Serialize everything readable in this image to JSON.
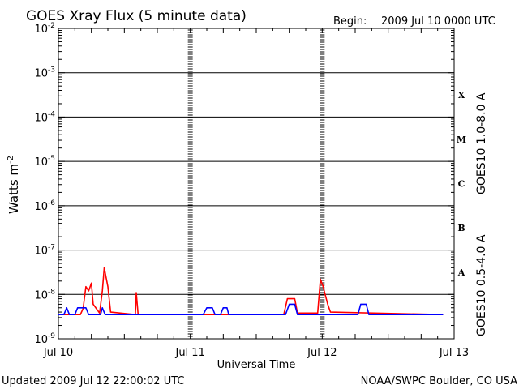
{
  "chart_data": {
    "type": "line",
    "title": "GOES Xray Flux (5 minute data)",
    "begin_label": "Begin:",
    "begin_value": "2009 Jul 10 0000 UTC",
    "xlabel": "Universal Time",
    "ylabel_base": "Watts m",
    "ylabel_exp": "-2",
    "yscale": "log",
    "ylim": [
      1e-09,
      0.01
    ],
    "xlim": [
      "2009-07-10 00:00",
      "2009-07-13 00:00"
    ],
    "grid": true,
    "x_ticks": [
      {
        "x": "2009-07-10 00:00",
        "label": "Jul 10"
      },
      {
        "x": "2009-07-11 00:00",
        "label": "Jul 11"
      },
      {
        "x": "2009-07-12 00:00",
        "label": "Jul 12"
      },
      {
        "x": "2009-07-13 00:00",
        "label": "Jul 13"
      }
    ],
    "y_ticks": [
      {
        "value": 0.01,
        "base": "10",
        "exp": "-2"
      },
      {
        "value": 0.001,
        "base": "10",
        "exp": "-3"
      },
      {
        "value": 0.0001,
        "base": "10",
        "exp": "-4"
      },
      {
        "value": 1e-05,
        "base": "10",
        "exp": "-5"
      },
      {
        "value": 1e-06,
        "base": "10",
        "exp": "-6"
      },
      {
        "value": 1e-07,
        "base": "10",
        "exp": "-7"
      },
      {
        "value": 1e-08,
        "base": "10",
        "exp": "-8"
      },
      {
        "value": 1e-09,
        "base": "10",
        "exp": "-9"
      }
    ],
    "flare_classes": [
      {
        "label": "X",
        "center": 0.000316
      },
      {
        "label": "M",
        "center": 3.16e-05
      },
      {
        "label": "C",
        "center": 3.16e-06
      },
      {
        "label": "B",
        "center": 3.16e-07
      },
      {
        "label": "A",
        "center": 3.16e-08
      }
    ],
    "series": [
      {
        "name": "GOES10 1.0-8.0 A",
        "color": "#ff0000",
        "points": [
          [
            "2009-07-10 00:00",
            3.5e-09
          ],
          [
            "2009-07-10 04:00",
            3.5e-09
          ],
          [
            "2009-07-10 04:30",
            4.8e-09
          ],
          [
            "2009-07-10 05:00",
            1.5e-08
          ],
          [
            "2009-07-10 05:30",
            1.2e-08
          ],
          [
            "2009-07-10 06:00",
            1.8e-08
          ],
          [
            "2009-07-10 06:20",
            6e-09
          ],
          [
            "2009-07-10 07:30",
            3.8e-09
          ],
          [
            "2009-07-10 08:00",
            1.2e-08
          ],
          [
            "2009-07-10 08:20",
            4e-08
          ],
          [
            "2009-07-10 09:00",
            1.5e-08
          ],
          [
            "2009-07-10 09:30",
            4e-09
          ],
          [
            "2009-07-10 14:00",
            3.5e-09
          ],
          [
            "2009-07-10 14:10",
            1.1e-08
          ],
          [
            "2009-07-10 14:30",
            3.5e-09
          ],
          [
            "2009-07-11 00:00",
            3.5e-09
          ],
          [
            "2009-07-11 17:00",
            3.5e-09
          ],
          [
            "2009-07-11 17:40",
            8e-09
          ],
          [
            "2009-07-11 19:00",
            8e-09
          ],
          [
            "2009-07-11 19:30",
            3.8e-09
          ],
          [
            "2009-07-11 23:10",
            3.8e-09
          ],
          [
            "2009-07-11 23:40",
            2.2e-08
          ],
          [
            "2009-07-12 00:10",
            1.5e-08
          ],
          [
            "2009-07-12 01:00",
            6e-09
          ],
          [
            "2009-07-12 01:30",
            4e-09
          ],
          [
            "2009-07-12 22:00",
            3.5e-09
          ]
        ]
      },
      {
        "name": "GOES10 0.5-4.0 A",
        "color": "#0000ff",
        "points": [
          [
            "2009-07-10 00:00",
            3.5e-09
          ],
          [
            "2009-07-10 01:00",
            3.5e-09
          ],
          [
            "2009-07-10 01:30",
            5e-09
          ],
          [
            "2009-07-10 02:00",
            3.5e-09
          ],
          [
            "2009-07-10 03:00",
            3.5e-09
          ],
          [
            "2009-07-10 03:30",
            5e-09
          ],
          [
            "2009-07-10 05:00",
            5e-09
          ],
          [
            "2009-07-10 05:30",
            3.5e-09
          ],
          [
            "2009-07-10 07:40",
            3.5e-09
          ],
          [
            "2009-07-10 08:00",
            5e-09
          ],
          [
            "2009-07-10 08:30",
            3.5e-09
          ],
          [
            "2009-07-11 02:20",
            3.5e-09
          ],
          [
            "2009-07-11 03:00",
            5e-09
          ],
          [
            "2009-07-11 04:00",
            5e-09
          ],
          [
            "2009-07-11 04:30",
            3.5e-09
          ],
          [
            "2009-07-11 05:30",
            3.5e-09
          ],
          [
            "2009-07-11 06:00",
            5e-09
          ],
          [
            "2009-07-11 06:40",
            5e-09
          ],
          [
            "2009-07-11 07:00",
            3.5e-09
          ],
          [
            "2009-07-11 17:20",
            3.5e-09
          ],
          [
            "2009-07-11 18:00",
            6e-09
          ],
          [
            "2009-07-11 19:00",
            6e-09
          ],
          [
            "2009-07-11 19:30",
            3.5e-09
          ],
          [
            "2009-07-12 06:30",
            3.5e-09
          ],
          [
            "2009-07-12 07:00",
            6e-09
          ],
          [
            "2009-07-12 08:00",
            6e-09
          ],
          [
            "2009-07-12 08:30",
            3.5e-09
          ],
          [
            "2009-07-12 22:00",
            3.5e-09
          ]
        ]
      }
    ]
  },
  "footer": {
    "updated": "Updated 2009 Jul 12 22:00:02 UTC",
    "source": "NOAA/SWPC Boulder, CO USA"
  }
}
